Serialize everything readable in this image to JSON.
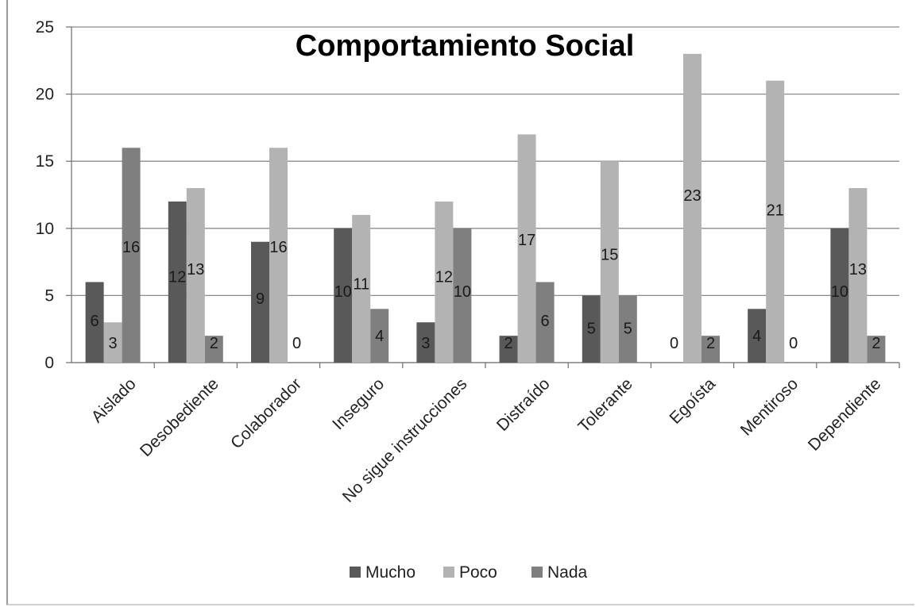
{
  "chart_data": {
    "type": "bar",
    "title": "Comportamiento Social",
    "categories": [
      "Aislado",
      "Desobediente",
      "Colaborador",
      "Inseguro",
      "No sigue instrucciones",
      "Distraído",
      "Tolerante",
      "Egoísta",
      "Mentiroso",
      "Dependiente"
    ],
    "series": [
      {
        "name": "Mucho",
        "values": [
          6,
          12,
          9,
          10,
          3,
          2,
          5,
          0,
          4,
          10
        ],
        "color": "#595959"
      },
      {
        "name": "Poco",
        "values": [
          3,
          13,
          16,
          11,
          12,
          17,
          15,
          23,
          21,
          13
        ],
        "color": "#b3b3b3"
      },
      {
        "name": "Nada",
        "values": [
          16,
          2,
          0,
          4,
          10,
          6,
          5,
          2,
          0,
          2
        ],
        "color": "#7f7f7f"
      }
    ],
    "ylim": [
      0,
      25
    ],
    "yticks": [
      0,
      5,
      10,
      15,
      20,
      25
    ],
    "grid": true,
    "legend": "bottom",
    "data_labels": true
  }
}
